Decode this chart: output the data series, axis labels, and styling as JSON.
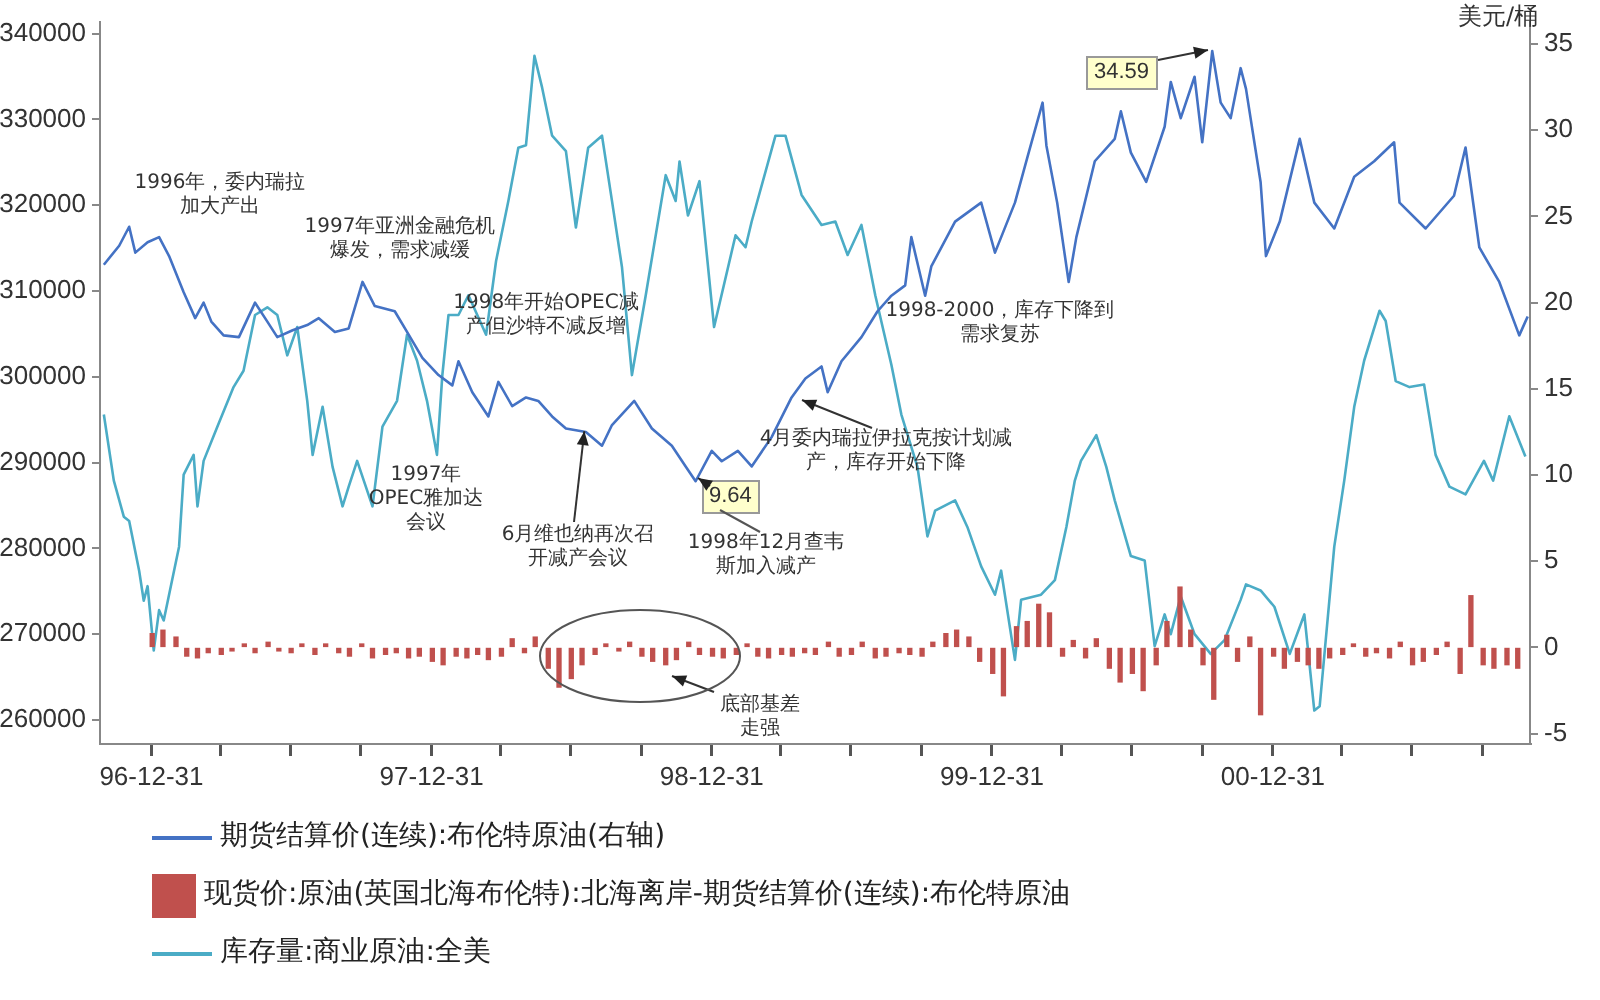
{
  "chart_data": {
    "type": "line",
    "xlim": [
      "1996-10-25",
      "2001-12-01"
    ],
    "xticks": [
      {
        "value": "1996-12-31",
        "label": "96-12-31"
      },
      {
        "value": "1997-03-31",
        "label": null
      },
      {
        "value": "1997-06-30",
        "label": null
      },
      {
        "value": "1997-09-30",
        "label": null
      },
      {
        "value": "1997-12-31",
        "label": "97-12-31"
      },
      {
        "value": "1998-03-31",
        "label": null
      },
      {
        "value": "1998-06-30",
        "label": null
      },
      {
        "value": "1998-09-30",
        "label": null
      },
      {
        "value": "1998-12-31",
        "label": "98-12-31"
      },
      {
        "value": "1999-03-31",
        "label": null
      },
      {
        "value": "1999-06-30",
        "label": null
      },
      {
        "value": "1999-09-30",
        "label": null
      },
      {
        "value": "1999-12-31",
        "label": "99-12-31"
      },
      {
        "value": "2000-03-31",
        "label": null
      },
      {
        "value": "2000-06-30",
        "label": null
      },
      {
        "value": "2000-09-30",
        "label": null
      },
      {
        "value": "2000-12-31",
        "label": "00-12-31"
      },
      {
        "value": "2001-03-31",
        "label": null
      },
      {
        "value": "2001-06-30",
        "label": null
      },
      {
        "value": "2001-09-30",
        "label": null
      }
    ],
    "ylim": [
      257200,
      341400
    ],
    "yticks": [
      260000,
      270000,
      280000,
      290000,
      300000,
      310000,
      320000,
      330000,
      340000
    ],
    "y2lim": [
      -5.6,
      36.3
    ],
    "y2ticks": [
      -5,
      0,
      5,
      10,
      15,
      20,
      25,
      30,
      35
    ],
    "y2label": "美元/桶",
    "grid": false,
    "legend": "bottom",
    "marker": "none",
    "series": [
      {
        "axis": "y2",
        "name": "期货结算价(连续):布伦特原油(右轴)",
        "color": "#4472c4",
        "x": [
          "1996-10-30",
          "1996-11-19",
          "1996-12-02",
          "1996-12-10",
          "1996-12-26",
          "1997-01-10",
          "1997-01-23",
          "1997-02-11",
          "1997-02-26",
          "1997-03-09",
          "1997-03-19",
          "1997-04-04",
          "1997-04-24",
          "1997-05-15",
          "1997-05-31",
          "1997-06-13",
          "1997-07-03",
          "1997-07-22",
          "1997-08-06",
          "1997-08-27",
          "1997-09-14",
          "1997-10-02",
          "1997-10-18",
          "1997-11-13",
          "1997-11-29",
          "1997-12-19",
          "1998-01-09",
          "1998-01-27",
          "1998-02-04",
          "1998-02-22",
          "1998-03-15",
          "1998-03-28",
          "1998-04-15",
          "1998-05-03",
          "1998-05-19",
          "1998-06-06",
          "1998-06-24",
          "1998-07-20",
          "1998-08-10",
          "1998-08-23",
          "1998-09-21",
          "1998-10-14",
          "1998-11-09",
          "1998-11-27",
          "1998-12-10",
          "1998-12-31",
          "1999-01-13",
          "1999-02-03",
          "1999-02-21",
          "1999-03-19",
          "1999-04-14",
          "1999-05-02",
          "1999-05-23",
          "1999-05-31",
          "1999-06-18",
          "1999-07-14",
          "1999-08-04",
          "1999-08-22",
          "1999-09-09",
          "1999-09-17",
          "1999-10-05",
          "1999-10-13",
          "1999-11-13",
          "1999-12-17",
          "2000-01-04",
          "2000-01-30",
          "2000-02-15",
          "2000-03-06",
          "2000-03-11",
          "2000-03-25",
          "2000-04-09",
          "2000-04-19",
          "2000-05-13",
          "2000-06-08",
          "2000-06-16",
          "2000-06-29",
          "2000-07-19",
          "2000-08-12",
          "2000-08-20",
          "2000-09-02",
          "2000-09-20",
          "2000-09-30",
          "2000-10-13",
          "2000-10-24",
          "2000-11-06",
          "2000-11-19",
          "2000-11-26",
          "2000-12-15",
          "2000-12-22",
          "2001-01-09",
          "2001-02-04",
          "2001-02-23",
          "2001-03-21",
          "2001-04-16",
          "2001-05-12",
          "2001-06-07",
          "2001-06-14",
          "2001-07-18",
          "2001-08-24",
          "2001-09-08",
          "2001-09-26",
          "2001-10-22",
          "2001-11-17",
          "2001-11-28"
        ],
        "values": [
          22.2,
          23.3,
          24.4,
          22.9,
          23.5,
          23.8,
          22.7,
          20.6,
          19.1,
          20.0,
          18.9,
          18.1,
          18.0,
          20.0,
          18.9,
          18.0,
          18.4,
          18.7,
          19.1,
          18.3,
          18.5,
          21.2,
          19.8,
          19.5,
          18.3,
          16.8,
          15.8,
          15.2,
          16.6,
          14.8,
          13.4,
          15.4,
          14.0,
          14.5,
          14.3,
          13.4,
          12.7,
          12.5,
          11.7,
          12.9,
          14.3,
          12.7,
          11.7,
          10.5,
          9.64,
          11.4,
          10.8,
          11.4,
          10.5,
          12.2,
          14.5,
          15.6,
          16.3,
          14.8,
          16.6,
          18.0,
          19.5,
          20.4,
          21.0,
          23.8,
          20.4,
          22.1,
          24.7,
          25.8,
          22.9,
          25.8,
          28.4,
          31.6,
          29.1,
          25.8,
          21.2,
          23.8,
          28.2,
          29.5,
          31.1,
          28.7,
          27.0,
          30.2,
          32.8,
          30.7,
          33.1,
          29.3,
          34.59,
          31.6,
          30.7,
          33.6,
          32.4,
          27.0,
          22.7,
          24.7,
          29.5,
          25.8,
          24.3,
          27.3,
          28.2,
          29.3,
          25.8,
          24.3,
          26.2,
          29.0,
          23.2,
          21.2,
          18.1,
          19.2
        ]
      },
      {
        "type": "bar",
        "axis": "y2",
        "name": "现货价:原油(英国北海布伦特):北海离岸-期货结算价(连续):布伦特原油",
        "color": "#c0504d",
        "x": [
          "1997-01-01",
          "1997-01-15",
          "1997-02-01",
          "1997-02-15",
          "1997-03-01",
          "1997-03-15",
          "1997-04-01",
          "1997-04-15",
          "1997-05-01",
          "1997-05-15",
          "1997-06-01",
          "1997-06-15",
          "1997-07-01",
          "1997-07-15",
          "1997-08-01",
          "1997-08-15",
          "1997-09-01",
          "1997-09-15",
          "1997-10-01",
          "1997-10-15",
          "1997-11-01",
          "1997-11-15",
          "1997-12-01",
          "1997-12-15",
          "1998-01-01",
          "1998-01-15",
          "1998-02-01",
          "1998-02-15",
          "1998-03-01",
          "1998-03-15",
          "1998-04-01",
          "1998-04-15",
          "1998-05-01",
          "1998-05-15",
          "1998-06-01",
          "1998-06-15",
          "1998-07-01",
          "1998-07-15",
          "1998-08-01",
          "1998-08-15",
          "1998-09-01",
          "1998-09-15",
          "1998-10-01",
          "1998-10-15",
          "1998-11-01",
          "1998-11-15",
          "1998-12-01",
          "1998-12-15",
          "1999-01-01",
          "1999-01-15",
          "1999-02-01",
          "1999-02-15",
          "1999-03-01",
          "1999-03-15",
          "1999-04-01",
          "1999-04-15",
          "1999-05-01",
          "1999-05-15",
          "1999-06-01",
          "1999-06-15",
          "1999-07-01",
          "1999-07-15",
          "1999-08-01",
          "1999-08-15",
          "1999-09-01",
          "1999-09-15",
          "1999-10-01",
          "1999-10-15",
          "1999-11-01",
          "1999-11-15",
          "1999-12-01",
          "1999-12-15",
          "2000-01-01",
          "2000-01-15",
          "2000-02-01",
          "2000-02-15",
          "2000-03-01",
          "2000-03-15",
          "2000-04-01",
          "2000-04-15",
          "2000-05-01",
          "2000-05-15",
          "2000-06-01",
          "2000-06-15",
          "2000-07-01",
          "2000-07-15",
          "2000-08-01",
          "2000-08-15",
          "2000-09-01",
          "2000-09-15",
          "2000-10-01",
          "2000-10-15",
          "2000-11-01",
          "2000-11-15",
          "2000-12-01",
          "2000-12-15",
          "2001-01-01",
          "2001-01-15",
          "2001-02-01",
          "2001-02-15",
          "2001-03-01",
          "2001-03-15",
          "2001-04-01",
          "2001-04-15",
          "2001-05-01",
          "2001-05-15",
          "2001-06-01",
          "2001-06-15",
          "2001-07-01",
          "2001-07-15",
          "2001-08-01",
          "2001-08-15",
          "2001-09-01",
          "2001-09-15",
          "2001-10-01",
          "2001-10-15",
          "2001-11-01",
          "2001-11-15"
        ],
        "values": [
          0.8,
          1.0,
          0.6,
          -0.5,
          -0.6,
          -0.3,
          -0.4,
          -0.2,
          0.2,
          -0.3,
          0.3,
          -0.2,
          -0.3,
          0.2,
          -0.4,
          0.2,
          -0.3,
          -0.5,
          0.2,
          -0.6,
          -0.4,
          -0.3,
          -0.6,
          -0.5,
          -0.8,
          -1.0,
          -0.5,
          -0.6,
          -0.4,
          -0.7,
          -0.5,
          0.5,
          -0.3,
          0.6,
          -1.2,
          -2.3,
          -1.8,
          -1.0,
          -0.4,
          0.2,
          -0.2,
          0.3,
          -0.5,
          -0.8,
          -1.0,
          -0.7,
          0.3,
          -0.4,
          -0.5,
          -0.6,
          -0.4,
          0.2,
          -0.5,
          -0.6,
          -0.4,
          -0.5,
          -0.3,
          -0.4,
          0.3,
          -0.5,
          -0.4,
          0.3,
          -0.6,
          -0.5,
          -0.3,
          -0.4,
          -0.5,
          0.3,
          0.8,
          1.0,
          0.6,
          -0.8,
          -1.5,
          -2.8,
          1.2,
          1.5,
          2.5,
          2.0,
          -0.5,
          0.4,
          -0.6,
          0.5,
          -1.2,
          -2.0,
          -1.5,
          -2.5,
          -1.0,
          1.5,
          3.5,
          1.0,
          -1.0,
          -3.0,
          0.7,
          -0.8,
          0.6,
          -3.9,
          -0.5,
          -1.2,
          -0.8,
          -1.0,
          -1.2,
          -0.6,
          -0.4,
          0.2,
          -0.5,
          -0.3,
          -0.6,
          0.3,
          -1.0,
          -0.8,
          -0.4,
          0.3,
          -1.5,
          3.0,
          -1.0,
          -1.2,
          -1.0,
          -1.2
        ]
      },
      {
        "name": "库存量:商业原油:全美",
        "color": "#4bacc6",
        "x": [
          "1996-10-30",
          "1996-11-12",
          "1996-11-25",
          "1996-12-02",
          "1996-12-15",
          "1996-12-21",
          "1996-12-26",
          "1997-01-03",
          "1997-01-10",
          "1997-01-16",
          "1997-02-05",
          "1997-02-11",
          "1997-02-24",
          "1997-03-01",
          "1997-03-09",
          "1997-03-27",
          "1997-04-17",
          "1997-04-30",
          "1997-05-15",
          "1997-05-31",
          "1997-06-13",
          "1997-06-26",
          "1997-07-09",
          "1997-07-22",
          "1997-07-29",
          "1997-08-11",
          "1997-08-24",
          "1997-09-06",
          "1997-09-14",
          "1997-09-25",
          "1997-10-15",
          "1997-10-28",
          "1997-11-16",
          "1997-11-29",
          "1997-12-12",
          "1997-12-25",
          "1998-01-07",
          "1998-01-14",
          "1998-01-22",
          "1998-02-04",
          "1998-02-17",
          "1998-03-12",
          "1998-03-25",
          "1998-04-10",
          "1998-04-23",
          "1998-05-03",
          "1998-05-14",
          "1998-05-24",
          "1998-06-06",
          "1998-06-24",
          "1998-07-07",
          "1998-07-23",
          "1998-08-10",
          "1998-08-23",
          "1998-09-05",
          "1998-09-18",
          "1998-10-06",
          "1998-11-01",
          "1998-11-14",
          "1998-11-19",
          "1998-11-30",
          "1998-12-15",
          "1999-01-03",
          "1999-01-31",
          "1999-02-13",
          "1999-02-21",
          "1999-03-24",
          "1999-04-06",
          "1999-04-27",
          "1999-05-23",
          "1999-06-10",
          "1999-06-26",
          "1999-07-14",
          "1999-08-01",
          "1999-08-22",
          "1999-09-04",
          "1999-09-25",
          "1999-10-08",
          "1999-10-18",
          "1999-11-13",
          "1999-11-29",
          "1999-12-17",
          "2000-01-04",
          "2000-01-12",
          "2000-01-30",
          "2000-02-07",
          "2000-03-04",
          "2000-03-22",
          "2000-04-06",
          "2000-04-17",
          "2000-04-25",
          "2000-05-15",
          "2000-05-28",
          "2000-06-08",
          "2000-06-29",
          "2000-07-17",
          "2000-07-30",
          "2000-08-12",
          "2000-08-20",
          "2000-09-02",
          "2000-09-20",
          "2000-10-11",
          "2000-10-29",
          "2000-11-19",
          "2000-11-26",
          "2000-12-15",
          "2001-01-02",
          "2001-01-22",
          "2001-02-10",
          "2001-02-23",
          "2001-03-02",
          "2001-03-21",
          "2001-04-03",
          "2001-04-16",
          "2001-04-29",
          "2001-05-19",
          "2001-05-27",
          "2001-06-09",
          "2001-06-27",
          "2001-07-16",
          "2001-07-31",
          "2001-08-18",
          "2001-09-08",
          "2001-10-02",
          "2001-10-14",
          "2001-11-04",
          "2001-11-25"
        ],
        "values": [
          295600,
          287900,
          283700,
          283200,
          277400,
          273900,
          275600,
          268100,
          272800,
          271600,
          280200,
          288600,
          290900,
          284900,
          290200,
          294200,
          298800,
          300700,
          307200,
          308100,
          307200,
          302500,
          305800,
          297200,
          290900,
          296500,
          289500,
          284900,
          287200,
          290200,
          284900,
          294200,
          297200,
          304900,
          301900,
          297200,
          290900,
          300200,
          307200,
          307200,
          309500,
          304900,
          313500,
          320500,
          326700,
          327000,
          337400,
          333700,
          328100,
          326300,
          317400,
          326700,
          328100,
          320500,
          312800,
          300200,
          309500,
          323500,
          320500,
          325100,
          318800,
          322800,
          305800,
          316500,
          315100,
          318100,
          328100,
          328100,
          321200,
          317700,
          318100,
          314200,
          317700,
          309500,
          301400,
          295600,
          289500,
          281400,
          284400,
          285600,
          282500,
          277900,
          274600,
          277400,
          267000,
          274000,
          274600,
          276300,
          282500,
          287900,
          290200,
          293200,
          289500,
          285600,
          279100,
          278600,
          268600,
          272300,
          270000,
          274400,
          270000,
          267700,
          269300,
          274000,
          275800,
          275100,
          273200,
          267700,
          272300,
          261100,
          261600,
          280200,
          287900,
          296500,
          301900,
          307700,
          306500,
          299500,
          298800,
          299100,
          290900,
          287200,
          286300,
          290200,
          287900,
          295400,
          290700
        ]
      }
    ],
    "annotations": [
      "1996年，委内瑞拉加大产出",
      "1997年亚洲金融危机爆发，需求减缓",
      "1998年开始OPEC减产但沙特不减反增",
      "1997年OPEC雅加达会议",
      {
        "text": "6月维也纳再次召开减产会议",
        "x": "1998-07-18",
        "y": 293900
      },
      "1998年12月查韦斯加入减产",
      "4月委内瑞拉伊拉克按计划减产，库存开始下降",
      "1998-2000，库存下降到需求复苏",
      "底部基差走强",
      "34.59",
      "9.64"
    ]
  }
}
